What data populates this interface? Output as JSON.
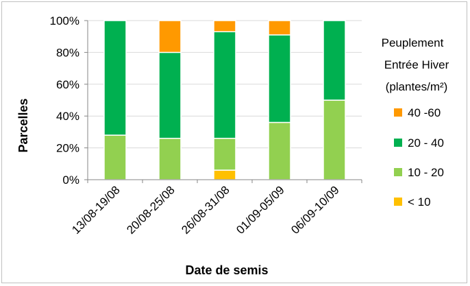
{
  "chart_data": {
    "type": "bar",
    "stacked": true,
    "normalized": true,
    "categories": [
      "13/08-19/08",
      "20/08-25/08",
      "26/08-31/08",
      "01/09-05/09",
      "06/09-10/09"
    ],
    "series": [
      {
        "name": "< 10",
        "color": "#ffc000",
        "values": [
          0,
          0,
          6,
          0,
          0
        ]
      },
      {
        "name": "10 - 20",
        "color": "#92d050",
        "values": [
          28,
          26,
          20,
          36,
          50
        ]
      },
      {
        "name": "20 - 40",
        "color": "#00b050",
        "values": [
          72,
          54,
          67,
          55,
          50
        ]
      },
      {
        "name": "40 -60",
        "color": "#ff9900",
        "values": [
          0,
          20,
          7,
          9,
          0
        ]
      }
    ],
    "yticks": [
      "0%",
      "20%",
      "40%",
      "60%",
      "80%",
      "100%"
    ],
    "ylim": [
      0,
      100
    ],
    "xlabel": "Date de semis",
    "ylabel": "Parcelles",
    "legend_title": [
      "Peuplement",
      "Entrée Hiver",
      "(plantes/m²)"
    ],
    "legend_order": [
      "40 -60",
      "20 - 40",
      "10 - 20",
      "< 10"
    ],
    "legend_position": "right",
    "grid": true
  }
}
